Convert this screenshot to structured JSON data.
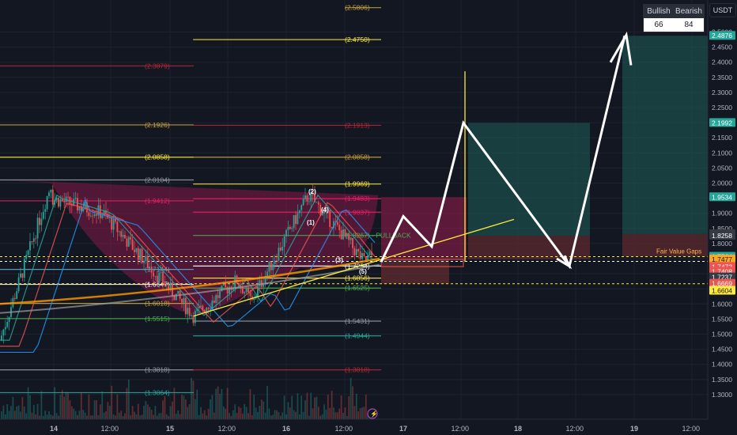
{
  "currency_label": "USDT",
  "sentiment": {
    "bullish_label": "Bullish",
    "bearish_label": "Bearish",
    "bullish_value": "66",
    "bearish_value": "84"
  },
  "colors": {
    "bg": "#131722",
    "up": "#26a69a",
    "down": "#ef5350",
    "fib_yellow": "#ffeb3b",
    "fib_orange": "#c8a23c",
    "fib_red": "#b22833",
    "fib_green": "#4caf50",
    "cup": "#c2185b",
    "zone_target": "#1f5f5a",
    "zone_stop": "#5c2a2e",
    "path": "#ffffff"
  },
  "chart_data": {
    "type": "candlestick",
    "y_axis": {
      "range": [
        1.25,
        2.55
      ],
      "ticks": [
        "2.5000",
        "2.4500",
        "2.4000",
        "2.3500",
        "2.3000",
        "2.2500",
        "2.2000",
        "2.1500",
        "2.1000",
        "2.0500",
        "2.0000",
        "1.9500",
        "1.9000",
        "1.8500",
        "1.8000",
        "1.7500",
        "1.7000",
        "1.6500",
        "1.6000",
        "1.5500",
        "1.5000",
        "1.4500",
        "1.4000",
        "1.3500",
        "1.3000"
      ]
    },
    "x_axis": {
      "ticks": [
        "14",
        "12:00",
        "15",
        "12:00",
        "16",
        "12:00",
        "17",
        "12:00",
        "18",
        "12:00",
        "19",
        "12:00"
      ]
    },
    "price_tags": [
      {
        "value": "2.4876",
        "price": 2.4876,
        "color": "#26a69a"
      },
      {
        "value": "2.1992",
        "price": 2.1992,
        "color": "#26a69a"
      },
      {
        "value": "1.9534",
        "price": 1.9534,
        "color": "#26a69a"
      },
      {
        "value": "1.8313",
        "price": 1.8313,
        "color": "#363a45"
      },
      {
        "value": "1.8258",
        "price": 1.8258,
        "color": "#363a45"
      },
      {
        "value": "1.7564",
        "price": 1.7564,
        "color": "#26a69a"
      },
      {
        "value": "04:12",
        "price": 1.7385,
        "color": "#26a69a"
      },
      {
        "value": "1.7477",
        "price": 1.7477,
        "color": "#f9a825"
      },
      {
        "value": "1.7472",
        "price": 1.7227,
        "color": "#ef5350"
      },
      {
        "value": "1.7408",
        "price": 1.7072,
        "color": "#ef5350"
      },
      {
        "value": "1.7237",
        "price": 1.6881,
        "color": "#363a45"
      },
      {
        "value": "1.6669",
        "price": 1.6669,
        "color": "#ef5350"
      },
      {
        "value": "1.6604",
        "price": 1.644,
        "color": "#ffeb3b"
      }
    ],
    "fib_levels": [
      {
        "label": "(2.5806)",
        "price": 2.5806,
        "start": 0.468,
        "color": "#c8a23c"
      },
      {
        "label": "(2.4750)",
        "price": 2.475,
        "start": 0.262,
        "color": "#ffeb3b"
      },
      {
        "label": "(2.3879)",
        "price": 2.3879,
        "start": 0.0,
        "color": "#b22833"
      },
      {
        "label": "(2.1926)",
        "price": 2.1926,
        "start": 0.0,
        "color": "#c8a23c"
      },
      {
        "label": "(2.1913)",
        "price": 2.1913,
        "start": 0.262,
        "color": "#b22833"
      },
      {
        "label": "(2.0858)",
        "price": 2.0858,
        "start": 0.0,
        "color": "#ffeb3b"
      },
      {
        "label": "(2.0858)",
        "price": 2.0858,
        "start": 0.262,
        "color": "#c8a23c"
      },
      {
        "label": "(2.0104)",
        "price": 2.0104,
        "start": 0.0,
        "color": "#9598a1"
      },
      {
        "label": "(1.9969)",
        "price": 1.9969,
        "start": 0.262,
        "color": "#ffeb3b"
      },
      {
        "label": "(1.9483)",
        "price": 1.9483,
        "start": 0.262,
        "color": "#e91e63"
      },
      {
        "label": "(1.9412)",
        "price": 1.9412,
        "start": 0.0,
        "color": "#e91e63"
      },
      {
        "label": "(1.9037)",
        "price": 1.9037,
        "start": 0.262,
        "color": "#e91e63"
      },
      {
        "label": "(1.8267) - PULLBACK",
        "price": 1.8267,
        "start": 0.262,
        "color": "#4caf50"
      },
      {
        "label": "(1.7144)",
        "price": 1.7144,
        "start": 0.0,
        "color": "#5fa8c6"
      },
      {
        "label": "(1.7254)",
        "price": 1.7254,
        "start": 0.262,
        "color": "#ffffff"
      },
      {
        "label": "(1.6647)",
        "price": 1.6647,
        "start": 0.0,
        "color": "#ffffff"
      },
      {
        "label": "(1.6856)",
        "price": 1.6856,
        "start": 0.262,
        "color": "#ffeb3b"
      },
      {
        "label": "(1.6525)",
        "price": 1.6525,
        "start": 0.262,
        "color": "#4caf50"
      },
      {
        "label": "(1.6018)",
        "price": 1.6018,
        "start": 0.0,
        "color": "#c8a23c"
      },
      {
        "label": "(1.5515)",
        "price": 1.5515,
        "start": 0.0,
        "color": "#4caf50"
      },
      {
        "label": "(1.5431)",
        "price": 1.5431,
        "start": 0.262,
        "color": "#9598a1"
      },
      {
        "label": "(1.4944)",
        "price": 1.4944,
        "start": 0.262,
        "color": "#26a69a"
      },
      {
        "label": "(1.3818)",
        "price": 1.3818,
        "start": 0.0,
        "color": "#9598a1"
      },
      {
        "label": "(1.3818)",
        "price": 1.3818,
        "start": 0.262,
        "color": "#b22833"
      },
      {
        "label": "(1.3064)",
        "price": 1.3064,
        "start": 0.0,
        "color": "#26a69a"
      }
    ],
    "wave_labels": [
      "(2)",
      "(4)",
      "(1)",
      "(3)",
      "(5)"
    ],
    "annotations": {
      "fvg_label": "Fair Value Gaps"
    },
    "projection_path": [
      [
        1.739
      ],
      [
        1.89
      ],
      [
        1.79
      ],
      [
        2.199
      ],
      [
        1.725
      ],
      [
        2.4876
      ]
    ]
  }
}
